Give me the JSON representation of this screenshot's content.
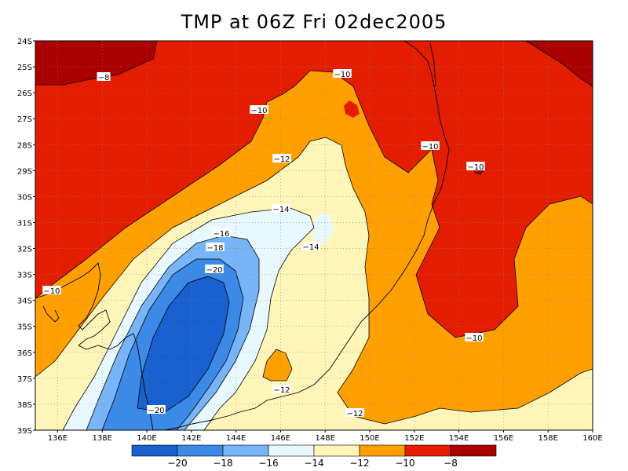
{
  "title": "TMP at 06Z Fri 02dec2005",
  "y_ticks": [
    "24S",
    "25S",
    "26S",
    "27S",
    "28S",
    "29S",
    "30S",
    "31S",
    "32S",
    "33S",
    "34S",
    "35S",
    "36S",
    "37S",
    "38S",
    "39S"
  ],
  "x_ticks": [
    "136E",
    "138E",
    "140E",
    "142E",
    "144E",
    "146E",
    "148E",
    "150E",
    "152E",
    "154E",
    "156E",
    "158E",
    "160E"
  ],
  "contour_labels": [
    "-8",
    "-10",
    "-10",
    "-10",
    "-12",
    "-10",
    "-14",
    "-16",
    "-14",
    "-18",
    "-20",
    "-10",
    "-10",
    "-12",
    "-20",
    "-12"
  ],
  "colorbar": {
    "labels": [
      "-20",
      "-18",
      "-16",
      "-14",
      "-12",
      "-10",
      "-8"
    ],
    "colors": [
      "#1860d0",
      "#3c8ae8",
      "#78b4f8",
      "#e8f8ff",
      "#fff5b8",
      "#ffa000",
      "#e41c00",
      "#aa0000"
    ]
  },
  "fill_colors": {
    "lt_minus_8": "#e41c00",
    "gt_minus_8": "#aa0000",
    "minus_10_to_minus_8": "#e41c00",
    "minus_12_to_minus_10": "#ffa000",
    "minus_14_to_minus_12": "#fff5b8",
    "minus_16_to_minus_14": "#e8f8ff",
    "minus_18_to_minus_16": "#78b4f8",
    "minus_20_to_minus_18": "#3c8ae8",
    "lt_minus_20": "#1860d0"
  }
}
